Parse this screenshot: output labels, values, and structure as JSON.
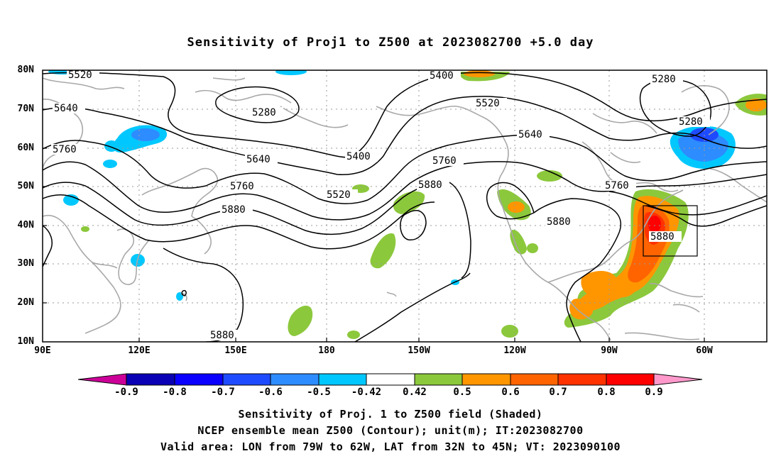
{
  "title": "Sensitivity of Proj1 to Z500 at 2023082700 +5.0 day",
  "axes": {
    "lat_labels": [
      "80N",
      "70N",
      "60N",
      "50N",
      "40N",
      "30N",
      "20N",
      "10N"
    ],
    "lon_labels": [
      "90E",
      "120E",
      "150E",
      "180",
      "150W",
      "120W",
      "90W",
      "60W"
    ]
  },
  "contour_labels": [
    "5520",
    "5400",
    "5280",
    "5640",
    "5520",
    "5280",
    "5280",
    "5760",
    "5640",
    "5640",
    "5400",
    "5760",
    "5760",
    "5520",
    "5880",
    "5760",
    "5880",
    "5880",
    "5880",
    "5880"
  ],
  "colorbar": {
    "labels": [
      "-0.9",
      "-0.8",
      "-0.7",
      "-0.6",
      "-0.5",
      "-0.42",
      "0.42",
      "0.5",
      "0.6",
      "0.7",
      "0.8",
      "0.9"
    ],
    "colors": [
      "#cc0099",
      "#0a00b4",
      "#0a00ff",
      "#1e4bff",
      "#2d8cff",
      "#00c8ff",
      "#ffffff",
      "#8cc83c",
      "#ff9600",
      "#ff6400",
      "#ff3200",
      "#ff0000",
      "#ff99cc"
    ]
  },
  "shading_colors": {
    "positive_low": "#8cc83c",
    "positive_mid": "#ff9600",
    "positive_high": "#ff3200",
    "positive_max": "#ff0000",
    "negative_low": "#00c8ff",
    "negative_mid": "#2d8cff",
    "negative_high": "#1e4bff"
  },
  "valid_area": {
    "lon_min": "79W",
    "lon_max": "62W",
    "lat_min": "32N",
    "lat_max": "45N"
  },
  "captions": [
    "Sensitivity of Proj. 1 to Z500 field (Shaded)",
    "NCEP ensemble mean Z500 (Contour); unit(m); IT:2023082700",
    "Valid area: LON from 79W to 62W, LAT from 32N to 45N; VT: 2023090100"
  ]
}
